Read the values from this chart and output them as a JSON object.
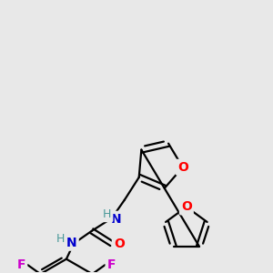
{
  "background_color": "#e8e8e8",
  "bond_color": "#000000",
  "atom_colors": {
    "O": "#ff0000",
    "N": "#0000cd",
    "F": "#cc00cc",
    "H": "#4a9999",
    "C": "#000000"
  },
  "figsize": [
    3.0,
    3.0
  ],
  "dpi": 100
}
